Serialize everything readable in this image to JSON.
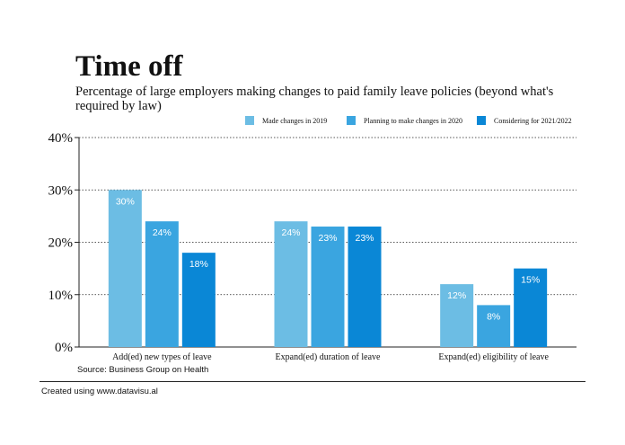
{
  "chart_data": {
    "type": "bar",
    "title": "Time off",
    "subtitle": "Percentage of large employers making changes to paid family leave policies (beyond what's required by law)",
    "categories": [
      "Add(ed) new types of leave",
      "Expand(ed) duration of leave",
      "Expand(ed) eligibility of leave"
    ],
    "series": [
      {
        "name": "Made changes in 2019",
        "values": [
          30,
          24,
          12
        ],
        "color": "#6cbde4"
      },
      {
        "name": "Planning to make changes in 2020",
        "values": [
          24,
          23,
          8
        ],
        "color": "#3aa5e0"
      },
      {
        "name": "Considering for 2021/2022",
        "values": [
          18,
          23,
          15
        ],
        "color": "#0a87d6"
      }
    ],
    "value_labels": [
      [
        "30%",
        "24%",
        "12%"
      ],
      [
        "24%",
        "23%",
        "8%"
      ],
      [
        "18%",
        "23%",
        "15%"
      ]
    ],
    "yticks": [
      0,
      10,
      20,
      30,
      40
    ],
    "ytick_labels": [
      "0%",
      "10%",
      "20%",
      "30%",
      "40%"
    ],
    "ylim": [
      0,
      40
    ],
    "xlabel": "",
    "ylabel": "",
    "grid": "horizontal dotted",
    "legend_position": "top-right",
    "source": "Source: Business Group on Health"
  },
  "footer": "Created using www.datavisu.al"
}
